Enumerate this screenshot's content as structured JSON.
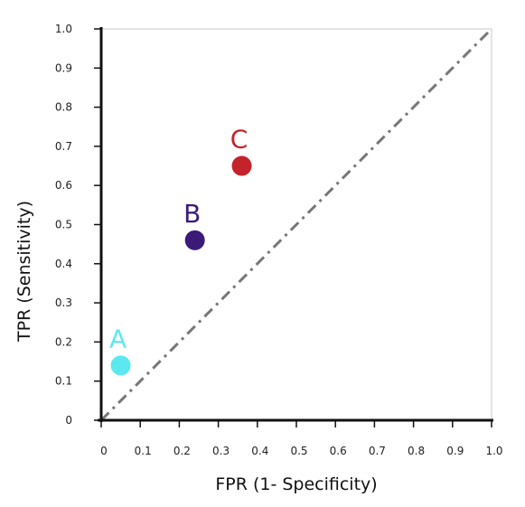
{
  "chart_data": {
    "type": "scatter",
    "title": "",
    "xlabel": "FPR (1- Specificity)",
    "ylabel": "TPR (Sensitivity)",
    "xlim": [
      0,
      1.0
    ],
    "ylim": [
      0,
      1.0
    ],
    "grid": false,
    "x_ticks": [
      "0",
      "0.1",
      "0.2",
      "0.3",
      "0.4",
      "0.5",
      "0.6",
      "0.7",
      "0.8",
      "0.9",
      "1.0"
    ],
    "y_ticks": [
      "0",
      "0.1",
      "0.2",
      "0.3",
      "0.4",
      "0.5",
      "0.6",
      "0.7",
      "0.8",
      "0.9",
      "1.0"
    ],
    "reference_line": {
      "from": [
        0,
        0
      ],
      "to": [
        1,
        1
      ],
      "style": "dash-dot",
      "color": "#777777"
    },
    "points": [
      {
        "label": "A",
        "x": 0.05,
        "y": 0.14,
        "color": "#5ce8ef"
      },
      {
        "label": "B",
        "x": 0.24,
        "y": 0.46,
        "color": "#3b1a78"
      },
      {
        "label": "C",
        "x": 0.36,
        "y": 0.65,
        "color": "#c4232b"
      }
    ]
  }
}
